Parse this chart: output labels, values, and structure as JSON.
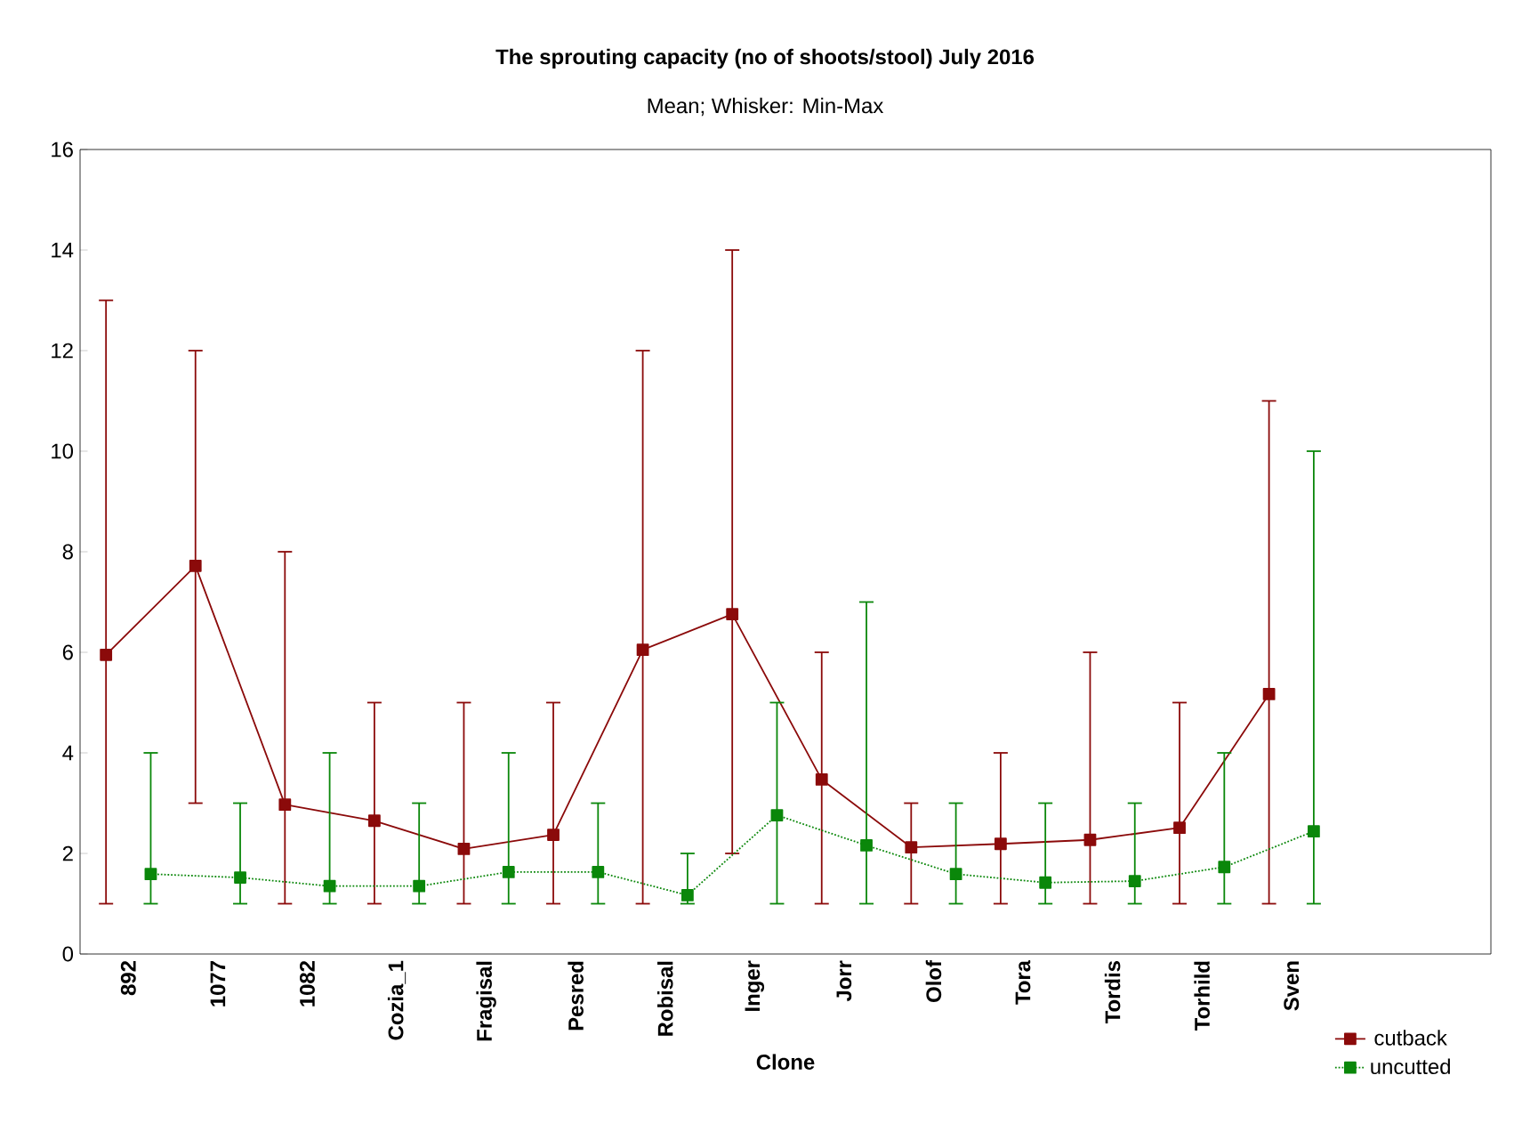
{
  "chart_data": {
    "type": "line",
    "title": "The sprouting capacity (no of shoots/stool) July 2016",
    "subtitle": "Mean; Whisker: Min-Max",
    "xlabel": "Clone",
    "categories": [
      "892",
      "1077",
      "1082",
      "Cozia_1",
      "Fragisal",
      "Pesred",
      "Robisal",
      "Inger",
      "Jorr",
      "Olof",
      "Tora",
      "Tordis",
      "Torhild",
      "Sven"
    ],
    "ylim": [
      0,
      16
    ],
    "yticks": [
      0,
      2,
      4,
      6,
      8,
      10,
      12,
      14,
      16
    ],
    "legend": "bottom right",
    "marker": "square",
    "series": [
      {
        "name": "cutback",
        "color": "#8b0a0a",
        "line_style": "solid",
        "values": [
          5.95,
          7.72,
          2.97,
          2.65,
          2.09,
          2.37,
          6.05,
          6.76,
          3.47,
          2.12,
          2.19,
          2.27,
          2.51,
          5.17
        ],
        "errors": [
          [
            1,
            13
          ],
          [
            3,
            12
          ],
          [
            1,
            8
          ],
          [
            1,
            5
          ],
          [
            1,
            5
          ],
          [
            1,
            5
          ],
          [
            1,
            12
          ],
          [
            2,
            14
          ],
          [
            1,
            6
          ],
          [
            1,
            3
          ],
          [
            1,
            4
          ],
          [
            1,
            6
          ],
          [
            1,
            5
          ],
          [
            1,
            11
          ]
        ]
      },
      {
        "name": "uncutted",
        "color": "#0a870a",
        "line_style": "dotted",
        "values": [
          1.59,
          1.52,
          1.35,
          1.35,
          1.63,
          1.63,
          1.17,
          2.76,
          2.16,
          1.59,
          1.42,
          1.45,
          1.73,
          2.44
        ],
        "errors": [
          [
            1,
            4
          ],
          [
            1,
            3
          ],
          [
            1,
            4
          ],
          [
            1,
            3
          ],
          [
            1,
            4
          ],
          [
            1,
            3
          ],
          [
            1,
            2
          ],
          [
            1,
            5
          ],
          [
            1,
            7
          ],
          [
            1,
            3
          ],
          [
            1,
            3
          ],
          [
            1,
            3
          ],
          [
            1,
            4
          ],
          [
            1,
            10
          ]
        ]
      }
    ]
  }
}
